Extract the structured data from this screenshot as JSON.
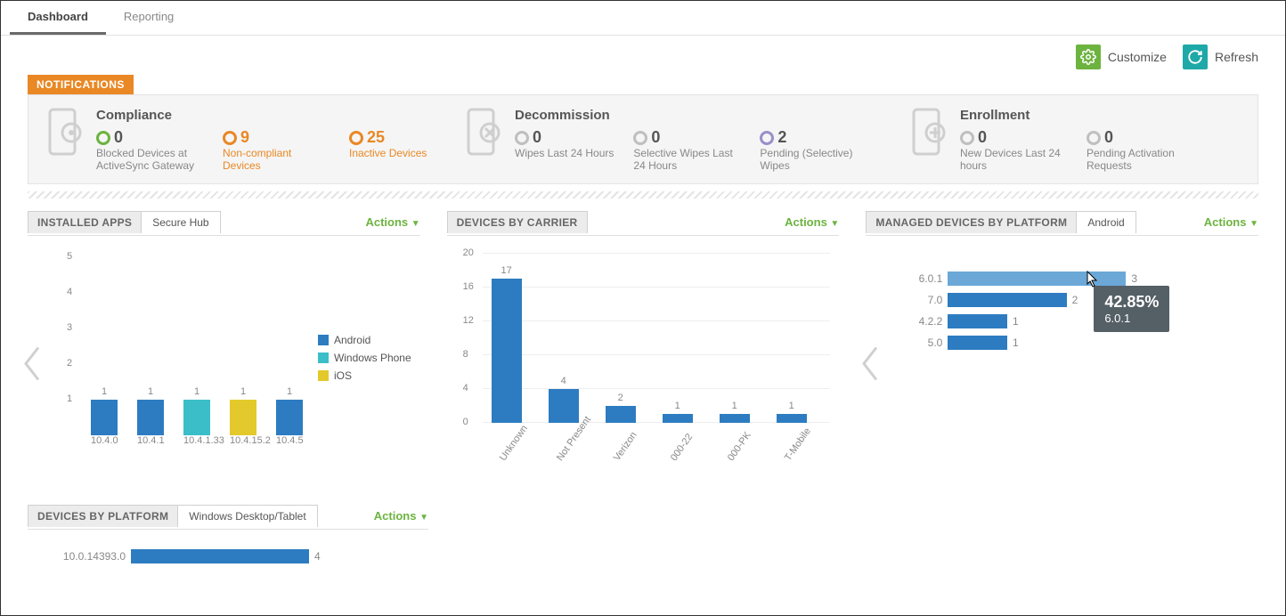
{
  "colors": {
    "orange": "#e98824",
    "green": "#6cb33f",
    "teal": "#1fa8a8",
    "blue": "#2d7cc1",
    "blue_light": "#6ba8d8",
    "cyan": "#3bbec7",
    "yellow": "#e3c92b",
    "grey": "#bfbfbf",
    "violet": "#9a8fc9",
    "text": "#555555",
    "muted": "#888888"
  },
  "tabs": {
    "dashboard": "Dashboard",
    "reporting": "Reporting",
    "active": "dashboard"
  },
  "toolbar": {
    "customize": "Customize",
    "refresh": "Refresh"
  },
  "notifications": {
    "label": "NOTIFICATIONS",
    "compliance": {
      "title": "Compliance",
      "stats": [
        {
          "value": "0",
          "label": "Blocked Devices at ActiveSync Gateway",
          "ring": "green",
          "orange": false
        },
        {
          "value": "9",
          "label": "Non-compliant Devices",
          "ring": "orange",
          "orange": true
        },
        {
          "value": "25",
          "label": "Inactive Devices",
          "ring": "orange",
          "orange": true
        }
      ]
    },
    "decommission": {
      "title": "Decommission",
      "stats": [
        {
          "value": "0",
          "label": "Wipes Last 24 Hours",
          "ring": "grey",
          "orange": false
        },
        {
          "value": "0",
          "label": "Selective Wipes Last 24 Hours",
          "ring": "grey",
          "orange": false
        },
        {
          "value": "2",
          "label": "Pending (Selective) Wipes",
          "ring": "violet",
          "orange": false
        }
      ]
    },
    "enrollment": {
      "title": "Enrollment",
      "stats": [
        {
          "value": "0",
          "label": "New Devices Last 24 hours",
          "ring": "grey",
          "orange": false
        },
        {
          "value": "0",
          "label": "Pending Activation Requests",
          "ring": "grey",
          "orange": false
        }
      ]
    }
  },
  "widget_actions": "Actions",
  "installed_apps": {
    "title": "INSTALLED APPS",
    "subtab": "Secure Hub",
    "ymax": 5,
    "ystep": 1,
    "legend": [
      {
        "label": "Android",
        "color": "#2d7cc1"
      },
      {
        "label": "Windows Phone",
        "color": "#3bbec7"
      },
      {
        "label": "iOS",
        "color": "#e3c92b"
      }
    ],
    "bars": [
      {
        "x": "10.4.0",
        "v": 1,
        "color": "#2d7cc1"
      },
      {
        "x": "10.4.1",
        "v": 1,
        "color": "#2d7cc1"
      },
      {
        "x": "10.4.1.33",
        "v": 1,
        "color": "#3bbec7"
      },
      {
        "x": "10.4.15.2",
        "v": 1,
        "color": "#e3c92b"
      },
      {
        "x": "10.4.5",
        "v": 1,
        "color": "#2d7cc1"
      }
    ]
  },
  "devices_by_carrier": {
    "title": "DEVICES BY CARRIER",
    "ymax": 20,
    "ystep": 4,
    "bars": [
      {
        "x": "Unknown",
        "v": 17
      },
      {
        "x": "Not Present",
        "v": 4
      },
      {
        "x": "Verizon",
        "v": 2
      },
      {
        "x": "000-22",
        "v": 1
      },
      {
        "x": "000-PK",
        "v": 1
      },
      {
        "x": "T-Mobile",
        "v": 1
      }
    ],
    "bar_color": "#2d7cc1"
  },
  "managed_by_platform": {
    "title": "MANAGED DEVICES BY PLATFORM",
    "subtab": "Android",
    "max": 3,
    "rows": [
      {
        "label": "6.0.1",
        "v": 3,
        "color": "#6ba8d8"
      },
      {
        "label": "7.0",
        "v": 2,
        "color": "#2d7cc1"
      },
      {
        "label": "4.2.2",
        "v": 1,
        "color": "#2d7cc1"
      },
      {
        "label": "5.0",
        "v": 1,
        "color": "#2d7cc1"
      }
    ],
    "tooltip": {
      "pct": "42.85%",
      "sub": "6.0.1"
    }
  },
  "devices_by_platform": {
    "title": "DEVICES BY PLATFORM",
    "subtab": "Windows Desktop/Tablet",
    "max": 4,
    "rows": [
      {
        "label": "10.0.14393.0",
        "v": 4,
        "color": "#2d7cc1"
      }
    ]
  }
}
